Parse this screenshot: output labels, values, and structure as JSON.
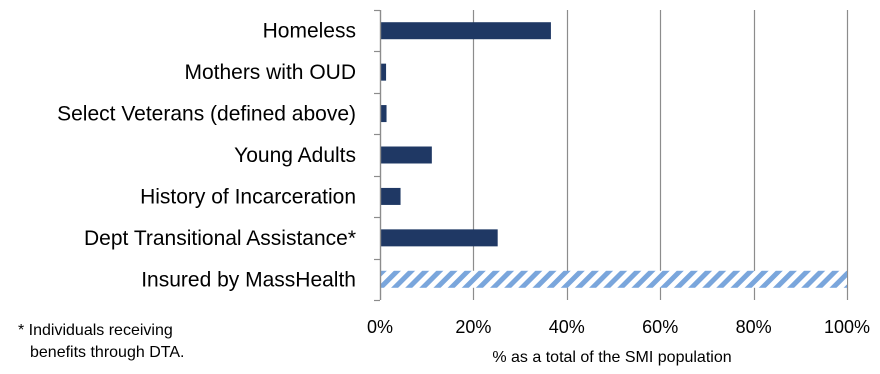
{
  "chart_data": {
    "type": "bar",
    "orientation": "horizontal",
    "categories": [
      "Homeless",
      "Mothers with OUD",
      "Select Veterans (defined above)",
      "Young Adults",
      "History of Incarceration",
      "Dept Transitional Assistance*",
      "Insured by MassHealth"
    ],
    "values": [
      36.6,
      1.3,
      1.4,
      11.1,
      4.4,
      25.2,
      100
    ],
    "fill_patterns": [
      "solid",
      "solid",
      "solid",
      "solid",
      "solid",
      "solid",
      "hatched"
    ],
    "xlabel": "% as a total of the SMI population",
    "xlim": [
      0,
      100
    ],
    "xticks": [
      0,
      20,
      40,
      60,
      80,
      100
    ],
    "xtick_labels": [
      "0%",
      "20%",
      "40%",
      "60%",
      "80%",
      "100%"
    ],
    "grid": "vertical",
    "colors": {
      "bar": "#1f3864",
      "hatch_fill": "#ffffff",
      "hatch_stripe": "#7aa6dc",
      "grid": "#8c8c8c"
    }
  },
  "footnote": {
    "line1": "* Individuals receiving",
    "line2": "benefits through DTA."
  }
}
